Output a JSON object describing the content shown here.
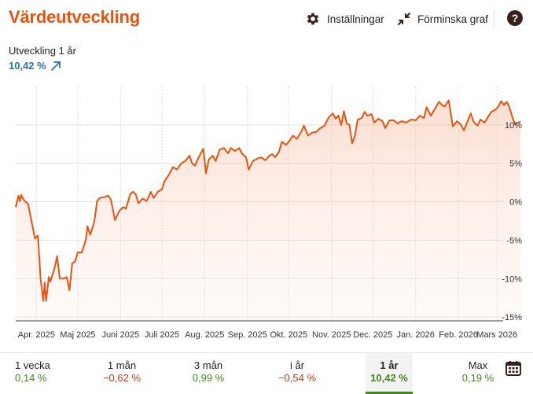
{
  "header": {
    "title": "Värdeutveckling",
    "settings_label": "Inställningar",
    "shrink_label": "Förminska graf",
    "help_label": "?"
  },
  "summary": {
    "subtitle": "Utveckling 1 år",
    "value": "10,42 %"
  },
  "periods": [
    {
      "label": "1 vecka",
      "value": "0,14 %",
      "sign": "pos",
      "active": false
    },
    {
      "label": "1 mån",
      "value": "−0,62 %",
      "sign": "neg",
      "active": false
    },
    {
      "label": "3 mån",
      "value": "0,99 %",
      "sign": "pos",
      "active": false
    },
    {
      "label": "i år",
      "value": "−0,54 %",
      "sign": "neg",
      "active": false
    },
    {
      "label": "1 år",
      "value": "10,42 %",
      "sign": "pos",
      "active": true
    },
    {
      "label": "Max",
      "value": "0,19 %",
      "sign": "pos",
      "active": false
    }
  ],
  "colors": {
    "accent": "#e8530e",
    "line": "#e8530e",
    "positive": "#3f8a1d",
    "negative": "#c03a1a",
    "link": "#2a6fb0"
  },
  "chart_data": {
    "type": "area",
    "xlabels": [
      "Apr. 2025",
      "Maj 2025",
      "Juni 2025",
      "Juli 2025",
      "Aug. 2025",
      "Sep. 2025",
      "Okt. 2025",
      "Nov. 2025",
      "Dec. 2025",
      "Jan. 2026",
      "Feb. 2026",
      "Mars 2026"
    ],
    "yticks": [
      10,
      5,
      0,
      -5,
      -10,
      -15
    ],
    "ytick_labels": [
      "10%",
      "5%",
      "0%",
      "-5%",
      "-10%",
      "-15%"
    ],
    "ylim": [
      -15.5,
      15
    ],
    "grid": true,
    "x_start": "2025-03-17",
    "x_end": "2026-03-18",
    "series": [
      {
        "values": [
          [
            "2025-03-17",
            -0.7
          ],
          [
            "2025-03-19",
            0.8
          ],
          [
            "2025-03-20",
            0.1
          ],
          [
            "2025-03-21",
            0.9
          ],
          [
            "2025-03-23",
            0.2
          ],
          [
            "2025-03-26",
            -0.3
          ],
          [
            "2025-03-29",
            -3.0
          ],
          [
            "2025-03-31",
            -4.8
          ],
          [
            "2025-04-02",
            -4.4
          ],
          [
            "2025-04-03",
            -7.0
          ],
          [
            "2025-04-04",
            -10.0
          ],
          [
            "2025-04-06",
            -12.9
          ],
          [
            "2025-04-07",
            -10.5
          ],
          [
            "2025-04-08",
            -12.9
          ],
          [
            "2025-04-10",
            -9.8
          ],
          [
            "2025-04-11",
            -10.4
          ],
          [
            "2025-04-14",
            -8.8
          ],
          [
            "2025-04-16",
            -7.1
          ],
          [
            "2025-04-18",
            -10.0
          ],
          [
            "2025-04-21",
            -10.0
          ],
          [
            "2025-04-23",
            -9.8
          ],
          [
            "2025-04-25",
            -11.5
          ],
          [
            "2025-04-27",
            -8.0
          ],
          [
            "2025-04-29",
            -7.8
          ],
          [
            "2025-05-01",
            -6.6
          ],
          [
            "2025-05-04",
            -6.6
          ],
          [
            "2025-05-07",
            -4.8
          ],
          [
            "2025-05-08",
            -3.2
          ],
          [
            "2025-05-10",
            -4.3
          ],
          [
            "2025-05-13",
            -2.6
          ],
          [
            "2025-05-15",
            0.1
          ],
          [
            "2025-05-17",
            0.5
          ],
          [
            "2025-05-20",
            0.6
          ],
          [
            "2025-05-23",
            0.8
          ],
          [
            "2025-05-25",
            0.3
          ],
          [
            "2025-05-28",
            -2.4
          ],
          [
            "2025-05-31",
            -1.2
          ],
          [
            "2025-06-03",
            -0.7
          ],
          [
            "2025-06-05",
            -0.9
          ],
          [
            "2025-06-08",
            1.0
          ],
          [
            "2025-06-10",
            1.3
          ],
          [
            "2025-06-12",
            1.0
          ],
          [
            "2025-06-14",
            -0.2
          ],
          [
            "2025-06-17",
            0.4
          ],
          [
            "2025-06-20",
            0.1
          ],
          [
            "2025-06-23",
            1.3
          ],
          [
            "2025-06-25",
            0.5
          ],
          [
            "2025-06-28",
            1.3
          ],
          [
            "2025-07-01",
            1.6
          ],
          [
            "2025-07-03",
            2.7
          ],
          [
            "2025-07-06",
            3.5
          ],
          [
            "2025-07-09",
            4.5
          ],
          [
            "2025-07-12",
            4.2
          ],
          [
            "2025-07-15",
            5.0
          ],
          [
            "2025-07-18",
            5.3
          ],
          [
            "2025-07-21",
            6.0
          ],
          [
            "2025-07-23",
            5.0
          ],
          [
            "2025-07-25",
            4.7
          ],
          [
            "2025-07-28",
            5.9
          ],
          [
            "2025-07-31",
            6.9
          ],
          [
            "2025-08-02",
            3.7
          ],
          [
            "2025-08-04",
            5.5
          ],
          [
            "2025-08-07",
            6.0
          ],
          [
            "2025-08-09",
            5.3
          ],
          [
            "2025-08-12",
            6.8
          ],
          [
            "2025-08-15",
            7.0
          ],
          [
            "2025-08-18",
            6.3
          ],
          [
            "2025-08-20",
            7.0
          ],
          [
            "2025-08-23",
            6.6
          ],
          [
            "2025-08-26",
            7.0
          ],
          [
            "2025-08-28",
            6.3
          ],
          [
            "2025-08-31",
            5.8
          ],
          [
            "2025-09-02",
            4.2
          ],
          [
            "2025-09-05",
            5.3
          ],
          [
            "2025-09-08",
            5.6
          ],
          [
            "2025-09-11",
            5.8
          ],
          [
            "2025-09-14",
            5.4
          ],
          [
            "2025-09-17",
            6.0
          ],
          [
            "2025-09-19",
            6.2
          ],
          [
            "2025-09-21",
            5.8
          ],
          [
            "2025-09-24",
            6.5
          ],
          [
            "2025-09-26",
            7.8
          ],
          [
            "2025-09-29",
            7.4
          ],
          [
            "2025-10-01",
            7.8
          ],
          [
            "2025-10-04",
            8.6
          ],
          [
            "2025-10-07",
            8.2
          ],
          [
            "2025-10-10",
            9.1
          ],
          [
            "2025-10-12",
            9.9
          ],
          [
            "2025-10-15",
            8.6
          ],
          [
            "2025-10-18",
            9.0
          ],
          [
            "2025-10-21",
            9.1
          ],
          [
            "2025-10-24",
            9.6
          ],
          [
            "2025-10-27",
            9.9
          ],
          [
            "2025-10-30",
            11.0
          ],
          [
            "2025-11-02",
            11.5
          ],
          [
            "2025-11-04",
            10.8
          ],
          [
            "2025-11-06",
            11.2
          ],
          [
            "2025-11-08",
            10.0
          ],
          [
            "2025-11-10",
            11.8
          ],
          [
            "2025-11-12",
            10.2
          ],
          [
            "2025-11-14",
            10.0
          ],
          [
            "2025-11-16",
            7.6
          ],
          [
            "2025-11-18",
            8.6
          ],
          [
            "2025-11-20",
            10.7
          ],
          [
            "2025-11-23",
            10.9
          ],
          [
            "2025-11-25",
            11.7
          ],
          [
            "2025-11-27",
            11.2
          ],
          [
            "2025-11-30",
            11.4
          ],
          [
            "2025-12-02",
            10.3
          ],
          [
            "2025-12-05",
            10.8
          ],
          [
            "2025-12-08",
            10.5
          ],
          [
            "2025-12-10",
            9.6
          ],
          [
            "2025-12-13",
            10.6
          ],
          [
            "2025-12-16",
            10.6
          ],
          [
            "2025-12-19",
            10.2
          ],
          [
            "2025-12-22",
            10.5
          ],
          [
            "2025-12-25",
            10.3
          ],
          [
            "2025-12-29",
            10.7
          ],
          [
            "2026-01-01",
            10.6
          ],
          [
            "2026-01-04",
            11.2
          ],
          [
            "2026-01-07",
            10.9
          ],
          [
            "2026-01-09",
            12.3
          ],
          [
            "2026-01-12",
            11.2
          ],
          [
            "2026-01-15",
            12.1
          ],
          [
            "2026-01-18",
            13.0
          ],
          [
            "2026-01-20",
            12.6
          ],
          [
            "2026-01-22",
            12.4
          ],
          [
            "2026-01-25",
            13.2
          ],
          [
            "2026-01-28",
            9.8
          ],
          [
            "2026-01-31",
            10.5
          ],
          [
            "2026-02-03",
            10.0
          ],
          [
            "2026-02-05",
            9.3
          ],
          [
            "2026-02-07",
            10.2
          ],
          [
            "2026-02-10",
            11.5
          ],
          [
            "2026-02-12",
            10.4
          ],
          [
            "2026-02-15",
            9.9
          ],
          [
            "2026-02-17",
            10.7
          ],
          [
            "2026-02-20",
            10.3
          ],
          [
            "2026-02-23",
            11.2
          ],
          [
            "2026-02-25",
            11.7
          ],
          [
            "2026-02-28",
            12.0
          ],
          [
            "2026-03-02",
            12.4
          ],
          [
            "2026-03-04",
            13.1
          ],
          [
            "2026-03-06",
            12.6
          ],
          [
            "2026-03-08",
            13.0
          ],
          [
            "2026-03-10",
            12.3
          ],
          [
            "2026-03-12",
            11.1
          ],
          [
            "2026-03-14",
            10.1
          ],
          [
            "2026-03-16",
            10.3
          ],
          [
            "2026-03-18",
            10.4
          ]
        ]
      }
    ]
  }
}
